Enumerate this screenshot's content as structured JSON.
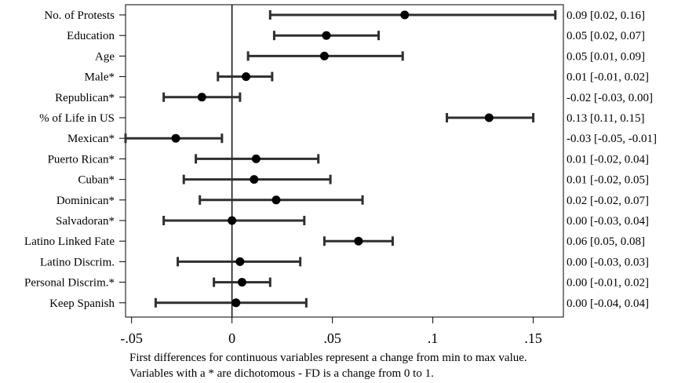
{
  "chart_data": {
    "type": "coefficient-plot",
    "title": "",
    "xlabel": "",
    "ylabel": "",
    "xlim": [
      -0.053,
      0.165
    ],
    "x_ticks": [
      -0.05,
      0,
      0.05,
      0.1,
      0.15
    ],
    "x_tick_labels": [
      "-.05",
      "0",
      ".05",
      ".1",
      ".15"
    ],
    "zero_line": true,
    "grid": false,
    "point_color": "#000000",
    "ci_color": "#2f2f2f",
    "rows": [
      {
        "label": "No. of Protests",
        "estimate": 0.086,
        "lower": 0.019,
        "upper": 0.161,
        "value_text": "0.09 [0.02, 0.16]"
      },
      {
        "label": "Education",
        "estimate": 0.047,
        "lower": 0.021,
        "upper": 0.073,
        "value_text": "0.05 [0.02, 0.07]"
      },
      {
        "label": "Age",
        "estimate": 0.046,
        "lower": 0.008,
        "upper": 0.085,
        "value_text": "0.05 [0.01, 0.09]"
      },
      {
        "label": "Male*",
        "estimate": 0.007,
        "lower": -0.007,
        "upper": 0.02,
        "value_text": "0.01 [-0.01, 0.02]"
      },
      {
        "label": "Republican*",
        "estimate": -0.015,
        "lower": -0.034,
        "upper": 0.004,
        "value_text": "-0.02 [-0.03, 0.00]"
      },
      {
        "label": "% of Life in US",
        "estimate": 0.128,
        "lower": 0.107,
        "upper": 0.15,
        "value_text": "0.13 [0.11, 0.15]"
      },
      {
        "label": "Mexican*",
        "estimate": -0.028,
        "lower": -0.053,
        "upper": -0.005,
        "value_text": "-0.03 [-0.05, -0.01]"
      },
      {
        "label": "Puerto Rican*",
        "estimate": 0.012,
        "lower": -0.018,
        "upper": 0.043,
        "value_text": "0.01 [-0.02, 0.04]"
      },
      {
        "label": "Cuban*",
        "estimate": 0.011,
        "lower": -0.024,
        "upper": 0.049,
        "value_text": "0.01 [-0.02, 0.05]"
      },
      {
        "label": "Dominican*",
        "estimate": 0.022,
        "lower": -0.016,
        "upper": 0.065,
        "value_text": "0.02 [-0.02, 0.07]"
      },
      {
        "label": "Salvadoran*",
        "estimate": 0.0,
        "lower": -0.034,
        "upper": 0.036,
        "value_text": "0.00 [-0.03, 0.04]"
      },
      {
        "label": "Latino Linked Fate",
        "estimate": 0.063,
        "lower": 0.046,
        "upper": 0.08,
        "value_text": "0.06 [0.05, 0.08]"
      },
      {
        "label": "Latino Discrim.",
        "estimate": 0.004,
        "lower": -0.027,
        "upper": 0.034,
        "value_text": "0.00 [-0.03, 0.03]"
      },
      {
        "label": "Personal Discrim.*",
        "estimate": 0.005,
        "lower": -0.009,
        "upper": 0.019,
        "value_text": "0.00 [-0.01, 0.02]"
      },
      {
        "label": "Keep Spanish",
        "estimate": 0.002,
        "lower": -0.038,
        "upper": 0.037,
        "value_text": "0.00 [-0.04, 0.04]"
      }
    ]
  },
  "notes": [
    "First differences for continuous variables represent a change from min to max value.",
    "Variables with a * are dichotomous - FD is a change from 0 to 1."
  ]
}
